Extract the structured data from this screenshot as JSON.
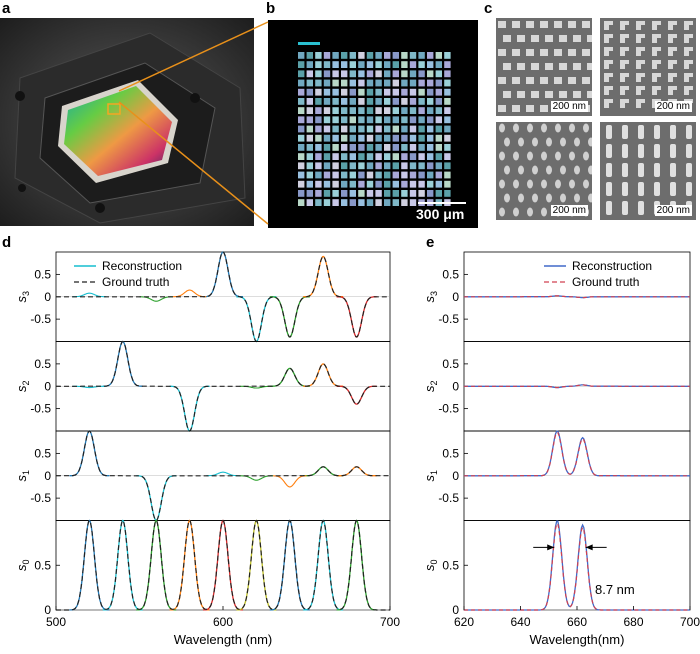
{
  "panels": {
    "a": "a",
    "b": "b",
    "c": "c",
    "d": "d",
    "e": "e"
  },
  "panel_b": {
    "scalebar": "300 μm"
  },
  "panel_c": {
    "scalebars": [
      "200 nm",
      "200 nm",
      "200 nm",
      "200 nm"
    ]
  },
  "colors": {
    "reconstruction_d": [
      "#1f77b4",
      "#17becf",
      "#2ca02c",
      "#ff7f0e",
      "#d62728",
      "#bcbd22"
    ],
    "ground_truth": "#222222",
    "reconstruction_e": "#4169c8",
    "ground_truth_e": "#d04050"
  },
  "chart_data": [
    {
      "type": "line",
      "panel": "d",
      "xlabel": "Wavelength (nm)",
      "xlim": [
        500,
        700
      ],
      "xticks": [
        "500",
        "600",
        "700"
      ],
      "legend": [
        "Reconstruction",
        "Ground truth"
      ],
      "legend_position": "top-left",
      "subplots": [
        {
          "ylabel": "s3",
          "ylim": [
            -1,
            1
          ],
          "yticks": [
            "0.5",
            "0",
            "-0.5"
          ],
          "peaks": [
            {
              "center": 600,
              "amp": 1.0
            },
            {
              "center": 620,
              "amp": -1.0
            },
            {
              "center": 640,
              "amp": -0.9
            },
            {
              "center": 660,
              "amp": 0.9
            },
            {
              "center": 680,
              "amp": -0.9
            }
          ],
          "recon_extra": [
            {
              "center": 520,
              "amp": 0.08
            },
            {
              "center": 560,
              "amp": -0.1
            },
            {
              "center": 580,
              "amp": 0.15
            }
          ]
        },
        {
          "ylabel": "s2",
          "ylim": [
            -1,
            1
          ],
          "yticks": [
            "0.5",
            "0",
            "-0.5"
          ],
          "peaks": [
            {
              "center": 540,
              "amp": 1.0
            },
            {
              "center": 580,
              "amp": -1.0
            },
            {
              "center": 640,
              "amp": 0.4
            },
            {
              "center": 660,
              "amp": 0.5
            },
            {
              "center": 680,
              "amp": -0.4
            }
          ],
          "recon_extra": [
            {
              "center": 520,
              "amp": -0.03
            },
            {
              "center": 620,
              "amp": -0.04
            }
          ]
        },
        {
          "ylabel": "s1",
          "ylim": [
            -1,
            1
          ],
          "yticks": [
            "0.5",
            "0",
            "-0.5"
          ],
          "peaks": [
            {
              "center": 520,
              "amp": 1.0
            },
            {
              "center": 560,
              "amp": -1.0
            },
            {
              "center": 660,
              "amp": 0.2
            },
            {
              "center": 680,
              "amp": 0.2
            }
          ],
          "recon_extra": [
            {
              "center": 600,
              "amp": 0.08
            },
            {
              "center": 620,
              "amp": -0.1
            },
            {
              "center": 640,
              "amp": -0.25
            }
          ]
        },
        {
          "ylabel": "s0",
          "ylim": [
            0,
            1
          ],
          "yticks": [
            "0.5",
            "0"
          ],
          "peaks": [
            {
              "center": 520,
              "amp": 1.0
            },
            {
              "center": 540,
              "amp": 1.0
            },
            {
              "center": 560,
              "amp": 1.0
            },
            {
              "center": 580,
              "amp": 1.0
            },
            {
              "center": 600,
              "amp": 1.0
            },
            {
              "center": 620,
              "amp": 1.0
            },
            {
              "center": 640,
              "amp": 1.0
            },
            {
              "center": 660,
              "amp": 1.0
            },
            {
              "center": 680,
              "amp": 1.0
            }
          ]
        }
      ]
    },
    {
      "type": "line",
      "panel": "e",
      "xlabel": "Wavelength(nm)",
      "xlim": [
        620,
        700
      ],
      "xticks": [
        "620",
        "640",
        "660",
        "680",
        "700"
      ],
      "legend": [
        "Reconstruction",
        "Ground truth"
      ],
      "legend_position": "top-right",
      "annotation": "8.7 nm",
      "subplots": [
        {
          "ylabel": "s3",
          "ylim": [
            -1,
            1
          ],
          "yticks": [
            "0.5",
            "0",
            "-0.5"
          ],
          "peaks": [
            {
              "center": 653,
              "amp": 0.02
            },
            {
              "center": 662,
              "amp": -0.02
            }
          ]
        },
        {
          "ylabel": "s2",
          "ylim": [
            -1,
            1
          ],
          "yticks": [
            "0.5",
            "0",
            "-0.5"
          ],
          "peaks": [
            {
              "center": 653,
              "amp": -0.03
            },
            {
              "center": 662,
              "amp": 0.03
            }
          ]
        },
        {
          "ylabel": "s1",
          "ylim": [
            -1,
            1
          ],
          "yticks": [
            "0.5",
            "0",
            "-0.5"
          ],
          "peaks": [
            {
              "center": 653,
              "amp": 1.0
            },
            {
              "center": 662,
              "amp": 0.85
            }
          ]
        },
        {
          "ylabel": "s0",
          "ylim": [
            0,
            1
          ],
          "yticks": [
            "0.5",
            "0"
          ],
          "peaks": [
            {
              "center": 653,
              "amp": 1.0
            },
            {
              "center": 662,
              "amp": 0.95
            }
          ]
        }
      ]
    }
  ]
}
